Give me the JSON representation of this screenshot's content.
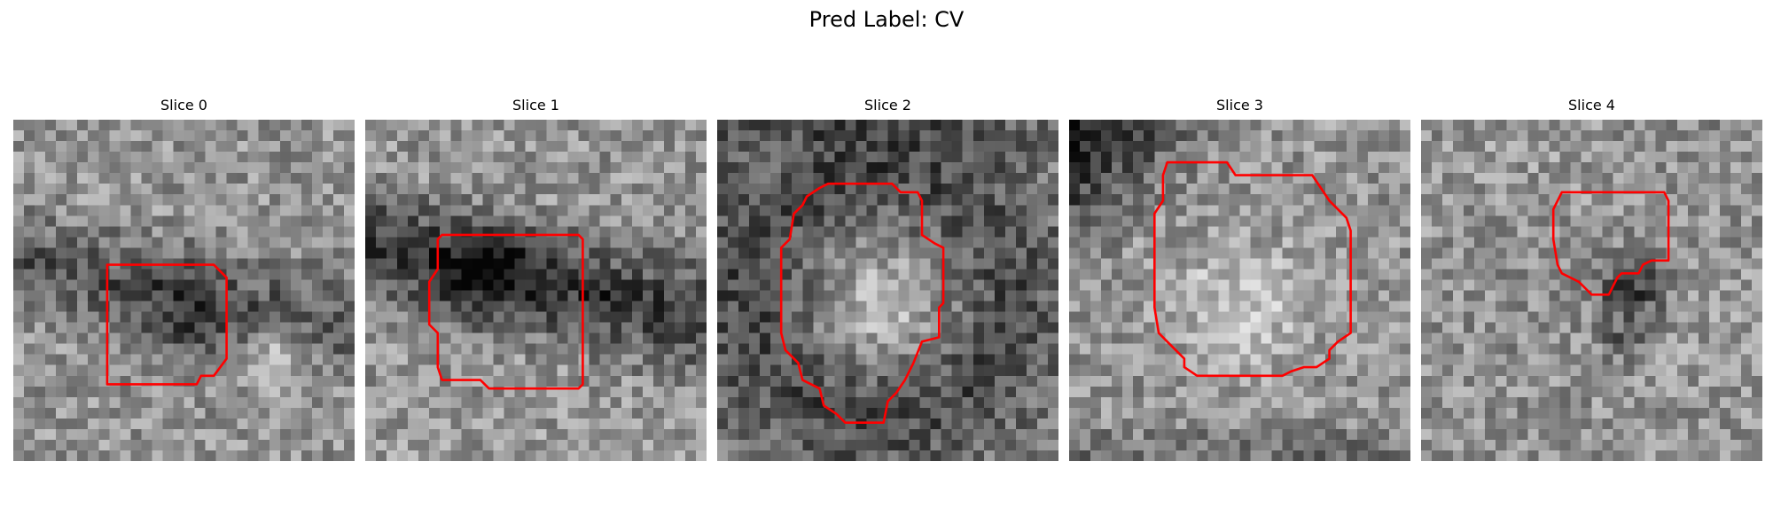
{
  "figure": {
    "title": "Pred Label: CV"
  },
  "colors": {
    "contour": "#ff0000",
    "background": "#ffffff"
  },
  "panels": [
    {
      "title": "Slice 0",
      "seed": 11,
      "dark_band": "diag-down",
      "blob": "dark-center",
      "contour": [
        [
          22,
          34
        ],
        [
          47,
          34
        ],
        [
          50,
          37
        ],
        [
          50,
          56
        ],
        [
          47,
          60
        ],
        [
          44,
          60
        ],
        [
          43,
          62
        ],
        [
          22,
          62
        ]
      ]
    },
    {
      "title": "Slice 1",
      "seed": 23,
      "dark_band": "diag-down-strong",
      "blob": "dark-top",
      "contour": [
        [
          18,
          27
        ],
        [
          50,
          27
        ],
        [
          51,
          28
        ],
        [
          51,
          62
        ],
        [
          50,
          63
        ],
        [
          29,
          63
        ],
        [
          27,
          61
        ],
        [
          18,
          61
        ],
        [
          17,
          58
        ],
        [
          17,
          50
        ],
        [
          15,
          48
        ],
        [
          15,
          38
        ],
        [
          17,
          35
        ],
        [
          17,
          28
        ]
      ]
    },
    {
      "title": "Slice 2",
      "seed": 37,
      "dark_band": "ring",
      "blob": "bright-center",
      "contour": [
        [
          26,
          15
        ],
        [
          41,
          15
        ],
        [
          43,
          17
        ],
        [
          47,
          17
        ],
        [
          48,
          19
        ],
        [
          48,
          27
        ],
        [
          51,
          29
        ],
        [
          53,
          30
        ],
        [
          53,
          43
        ],
        [
          52,
          44
        ],
        [
          52,
          51
        ],
        [
          48,
          52
        ],
        [
          46,
          57
        ],
        [
          44,
          61
        ],
        [
          42,
          64
        ],
        [
          40,
          66
        ],
        [
          39,
          71
        ],
        [
          30,
          71
        ],
        [
          28,
          69
        ],
        [
          25,
          67
        ],
        [
          24,
          63
        ],
        [
          20,
          61
        ],
        [
          19,
          57
        ],
        [
          16,
          54
        ],
        [
          15,
          50
        ],
        [
          15,
          30
        ],
        [
          17,
          28
        ],
        [
          18,
          22
        ],
        [
          20,
          20
        ],
        [
          21,
          18
        ],
        [
          24,
          16
        ]
      ]
    },
    {
      "title": "Slice 3",
      "seed": 51,
      "dark_band": "corner-top-left",
      "blob": "bright-center",
      "contour": [
        [
          23,
          10
        ],
        [
          37,
          10
        ],
        [
          39,
          13
        ],
        [
          57,
          13
        ],
        [
          61,
          19
        ],
        [
          65,
          23
        ],
        [
          66,
          26
        ],
        [
          66,
          50
        ],
        [
          63,
          52
        ],
        [
          61,
          54
        ],
        [
          61,
          56
        ],
        [
          58,
          58
        ],
        [
          55,
          58
        ],
        [
          52,
          59
        ],
        [
          50,
          60
        ],
        [
          30,
          60
        ],
        [
          27,
          58
        ],
        [
          27,
          56
        ],
        [
          25,
          54
        ],
        [
          23,
          52
        ],
        [
          21,
          50
        ],
        [
          20,
          44
        ],
        [
          20,
          22
        ],
        [
          22,
          19
        ],
        [
          22,
          13
        ]
      ]
    },
    {
      "title": "Slice 4",
      "seed": 67,
      "dark_band": "none",
      "blob": "dark-right",
      "contour": [
        [
          33,
          17
        ],
        [
          57,
          17
        ],
        [
          58,
          19
        ],
        [
          58,
          33
        ],
        [
          54,
          33
        ],
        [
          52,
          34
        ],
        [
          51,
          36
        ],
        [
          47,
          36
        ],
        [
          46,
          37
        ],
        [
          45,
          39
        ],
        [
          44,
          41
        ],
        [
          40,
          41
        ],
        [
          39,
          40
        ],
        [
          37,
          38
        ],
        [
          35,
          37
        ],
        [
          33,
          36
        ],
        [
          32,
          34
        ],
        [
          31,
          28
        ],
        [
          31,
          21
        ]
      ]
    }
  ]
}
